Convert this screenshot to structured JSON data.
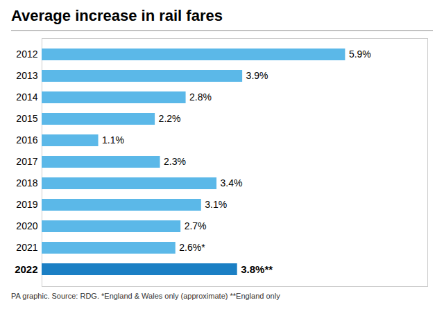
{
  "chart_data": {
    "type": "bar",
    "orientation": "horizontal",
    "title": "Average increase in rail fares",
    "categories": [
      "2012",
      "2013",
      "2014",
      "2015",
      "2016",
      "2017",
      "2018",
      "2019",
      "2020",
      "2021",
      "2022"
    ],
    "values": [
      5.9,
      3.9,
      2.8,
      2.2,
      1.1,
      2.3,
      3.4,
      3.1,
      2.7,
      2.6,
      3.8
    ],
    "value_labels": [
      "5.9%",
      "3.9%",
      "2.8%",
      "2.2%",
      "1.1%",
      "2.3%",
      "3.4%",
      "3.1%",
      "2.7%",
      "2.6%*",
      "3.8%**"
    ],
    "colors": [
      "#5BB8E8",
      "#5BB8E8",
      "#5BB8E8",
      "#5BB8E8",
      "#5BB8E8",
      "#5BB8E8",
      "#5BB8E8",
      "#5BB8E8",
      "#5BB8E8",
      "#5BB8E8",
      "#1B7FC4"
    ],
    "xlim": [
      0,
      7.5
    ],
    "xticks": [],
    "data_labels": true,
    "tick_labels": "y",
    "grid": false,
    "footnote": "PA graphic. Source: RDG. *England & Wales only (approximate) **England only"
  }
}
